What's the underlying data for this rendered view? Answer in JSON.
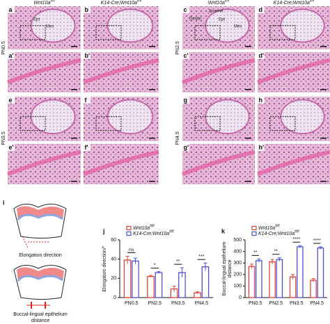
{
  "histology": {
    "left": {
      "headers": [
        {
          "text": "Wnt10a",
          "sup": "fl/fl"
        },
        {
          "text": "K14-Cre;Wnt10a",
          "sup": "fl/fl"
        }
      ],
      "stages": [
        "PN0.5",
        "PN3.5"
      ],
      "panels": [
        "a",
        "b",
        "a'",
        "b'",
        "e",
        "f",
        "e'",
        "f'"
      ]
    },
    "right": {
      "headers": [
        {
          "text": "Wnt10a",
          "sup": "fl/fl"
        },
        {
          "text": "K14-Cre;Wnt10a",
          "sup": "fl/fl"
        }
      ],
      "stages": [
        "PN2.5",
        "PN4.5"
      ],
      "panels": [
        "c",
        "d",
        "c'",
        "d'",
        "g",
        "h",
        "g'",
        "h'"
      ]
    },
    "annotations": [
      "Ept",
      "Mes",
      "Dentin",
      "Enamel",
      "Ept",
      "Mes"
    ]
  },
  "diagram": {
    "panel": "i",
    "labels": [
      "Elongation direction",
      "Buccal-lingual epithelium",
      "distance"
    ]
  },
  "chart_data": [
    {
      "type": "bar",
      "panel": "j",
      "ylabel": [
        "Elongation direction/°"
      ],
      "categories": [
        "PN0.5",
        "PN2.5",
        "PN3.5",
        "PN4.5"
      ],
      "series": [
        {
          "name": "Wnt10a",
          "name_sup": "fl/fl",
          "color": "#e0413a",
          "values": [
            39,
            22,
            9,
            5
          ],
          "errors": [
            4,
            1,
            3,
            1
          ]
        },
        {
          "name": "K14-Cre;Wnt10a",
          "name_sup": "fl/fl",
          "color": "#4a4fd8",
          "values": [
            38,
            26,
            26,
            32
          ],
          "errors": [
            3,
            1,
            5,
            4
          ]
        }
      ],
      "significance": [
        "ns",
        "*",
        "**",
        "***"
      ],
      "ylim": [
        0,
        60
      ],
      "yticks": [
        0,
        20,
        40,
        60
      ]
    },
    {
      "type": "bar",
      "panel": "k",
      "ylabel": [
        "Buccal-lingual epithelium",
        "distance"
      ],
      "categories": [
        "PN0.5",
        "PN2.5",
        "PN3.5",
        "PN4.5"
      ],
      "series": [
        {
          "name": "Wnt10a",
          "name_sup": "fl/fl",
          "color": "#e0413a",
          "values": [
            270,
            310,
            180,
            150
          ],
          "errors": [
            20,
            20,
            20,
            15
          ]
        },
        {
          "name": "K14-Cre;Wnt10a",
          "name_sup": "fl/fl",
          "color": "#4a4fd8",
          "values": [
            320,
            330,
            440,
            430
          ],
          "errors": [
            15,
            15,
            10,
            10
          ]
        }
      ],
      "significance": [
        "**",
        "**",
        "****",
        "****"
      ],
      "ylim": [
        0,
        500
      ],
      "yticks": [
        0,
        100,
        200,
        300,
        400,
        500
      ]
    }
  ]
}
